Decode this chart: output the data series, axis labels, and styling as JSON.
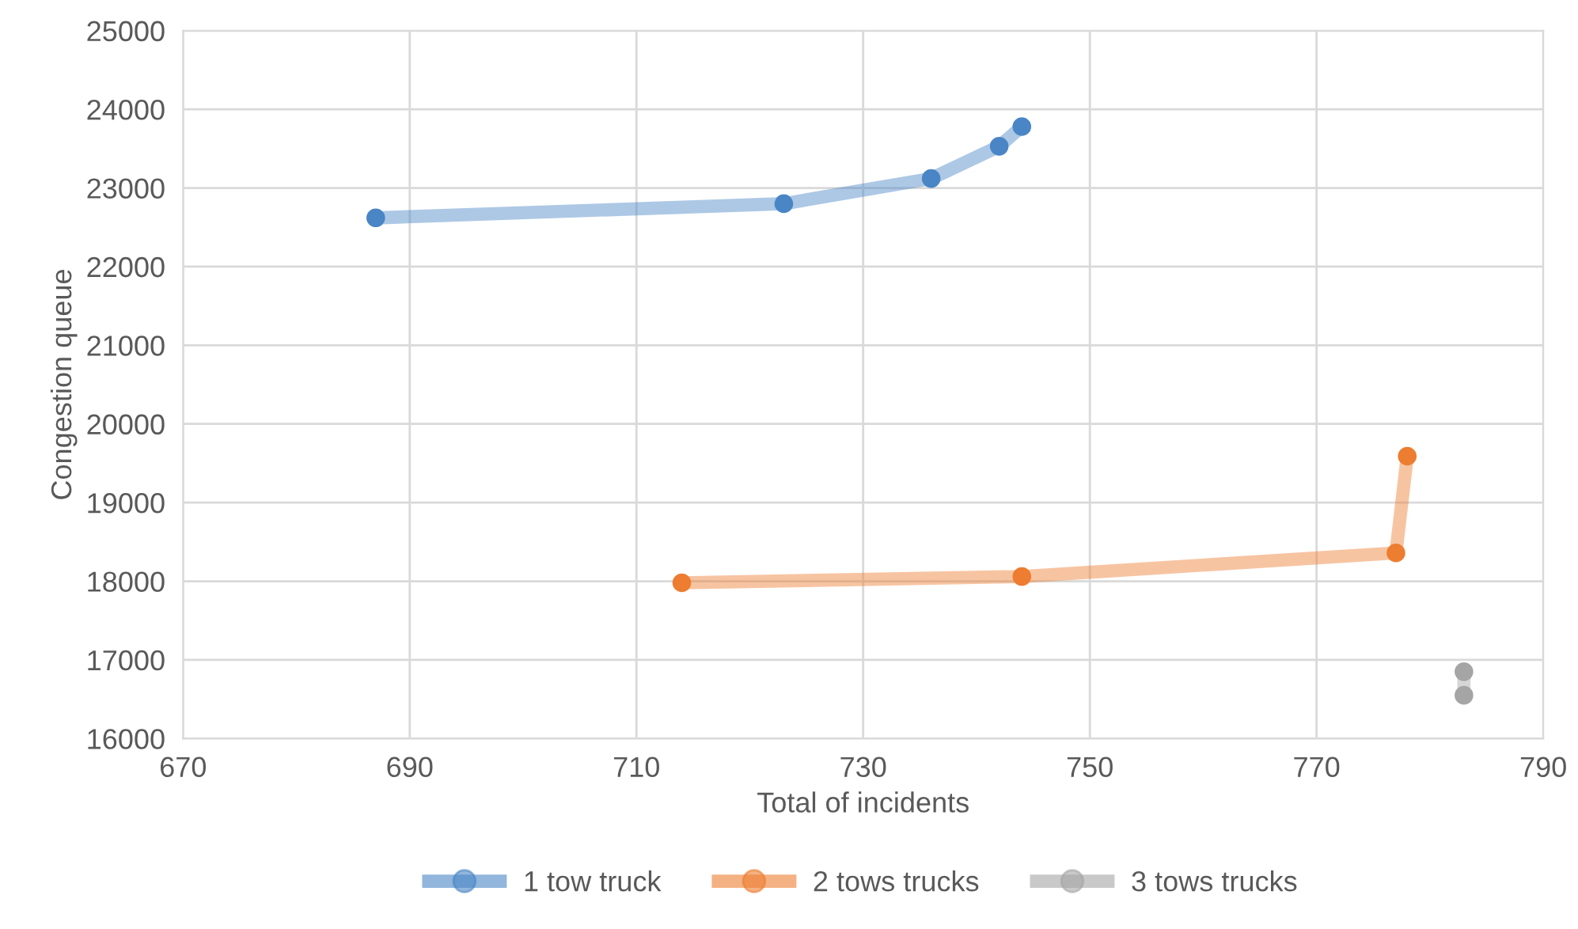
{
  "chart_data": {
    "type": "line",
    "xlabel": "Total of incidents",
    "ylabel": "Congestion queue",
    "xlim": [
      670,
      790
    ],
    "xticks": [
      670,
      690,
      710,
      730,
      750,
      770,
      790
    ],
    "ylim": [
      16000,
      25000
    ],
    "yticks": [
      16000,
      17000,
      18000,
      19000,
      20000,
      21000,
      22000,
      23000,
      24000,
      25000
    ],
    "grid": true,
    "legend": "bottom",
    "marker": "circle",
    "line_style": "solid",
    "series": [
      {
        "name": "1 tow truck",
        "color": "#4a86c5",
        "x": [
          687,
          723,
          736,
          742,
          744
        ],
        "values": [
          22620,
          22800,
          23120,
          23530,
          23780
        ]
      },
      {
        "name": "2 tows trucks",
        "color": "#ed7d31",
        "x": [
          714,
          744,
          777,
          778
        ],
        "values": [
          17980,
          18060,
          18360,
          19590
        ]
      },
      {
        "name": "3 tows trucks",
        "color": "#a5a5a5",
        "x": [
          783,
          783
        ],
        "values": [
          16850,
          16550
        ]
      }
    ]
  }
}
